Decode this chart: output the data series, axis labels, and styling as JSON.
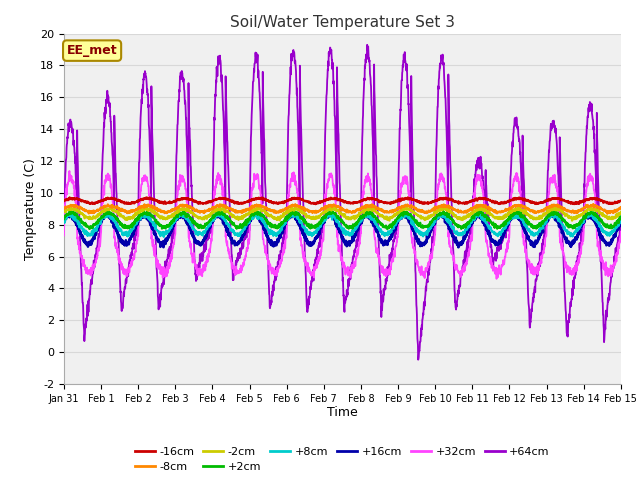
{
  "title": "Soil/Water Temperature Set 3",
  "xlabel": "Time",
  "ylabel": "Temperature (C)",
  "ylim": [
    -2,
    20
  ],
  "xlim": [
    0,
    15
  ],
  "xtick_labels": [
    "Jan 31",
    "Feb 1",
    "Feb 2",
    "Feb 3",
    "Feb 4",
    "Feb 5",
    "Feb 6",
    "Feb 7",
    "Feb 8",
    "Feb 9",
    "Feb 10",
    "Feb 11",
    "Feb 12",
    "Feb 13",
    "Feb 14",
    "Feb 15"
  ],
  "ytick_labels": [
    "-2",
    "0",
    "2",
    "4",
    "6",
    "8",
    "10",
    "12",
    "14",
    "16",
    "18",
    "20"
  ],
  "bg_color": "#ffffff",
  "plot_bg_color": "#f0f0f0",
  "grid_color": "#d8d8d8",
  "series_colors": {
    "-16cm": "#cc0000",
    "-8cm": "#ff8800",
    "-2cm": "#cccc00",
    "+2cm": "#00bb00",
    "+8cm": "#00cccc",
    "+16cm": "#0000aa",
    "+32cm": "#ff44ff",
    "+64cm": "#9900cc"
  },
  "annotation_text": "EE_met",
  "annotation_color": "#880000",
  "annotation_bg": "#ffff99",
  "annotation_border": "#aa8800"
}
